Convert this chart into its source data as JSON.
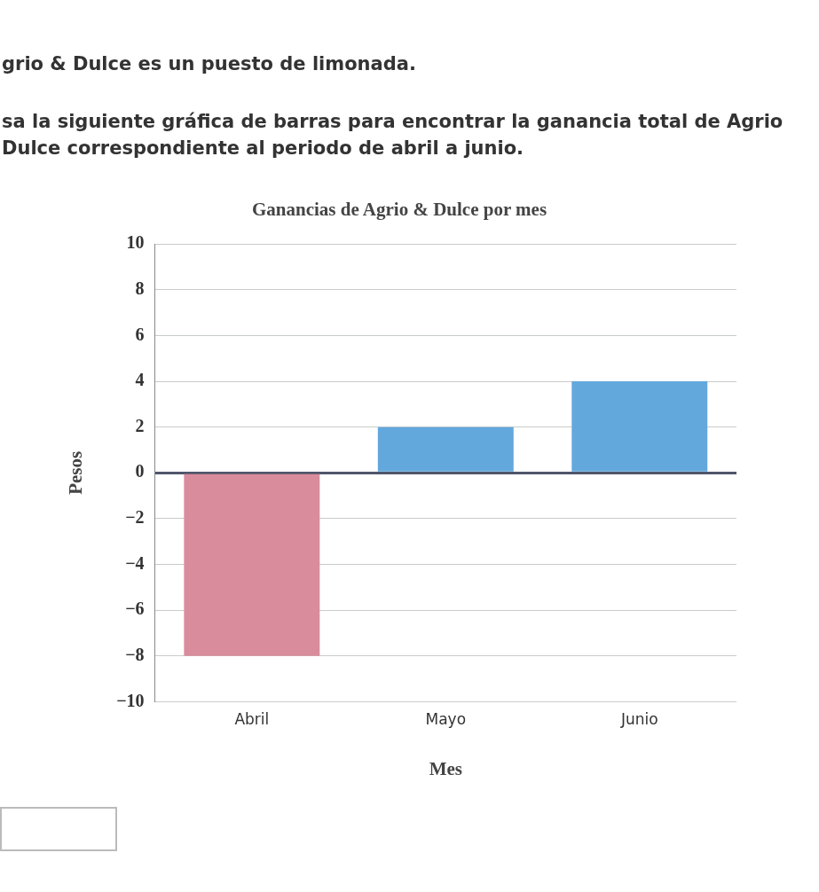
{
  "chart_data": {
    "type": "bar",
    "title": "Ganancias de Agrio & Dulce por mes",
    "xlabel": "Mes",
    "ylabel": "Pesos",
    "annotations": [
      "grio & Dulce es un puesto de limonada.",
      "sa la siguiente gráfica de barras para encontrar la ganancia total de Agrio",
      "Dulce correspondiente al periodo de abril a junio."
    ],
    "categories": [
      "Abril",
      "Mayo",
      "Junio"
    ],
    "values": [
      -8,
      2,
      4
    ],
    "colors": [
      "#d98c9c",
      "#62a8dc",
      "#62a8dc"
    ],
    "ylim": [
      -10,
      10
    ],
    "yticks": [
      -10,
      -8,
      -6,
      -4,
      -2,
      0,
      2,
      4,
      6,
      8,
      10
    ],
    "grid": "y"
  }
}
